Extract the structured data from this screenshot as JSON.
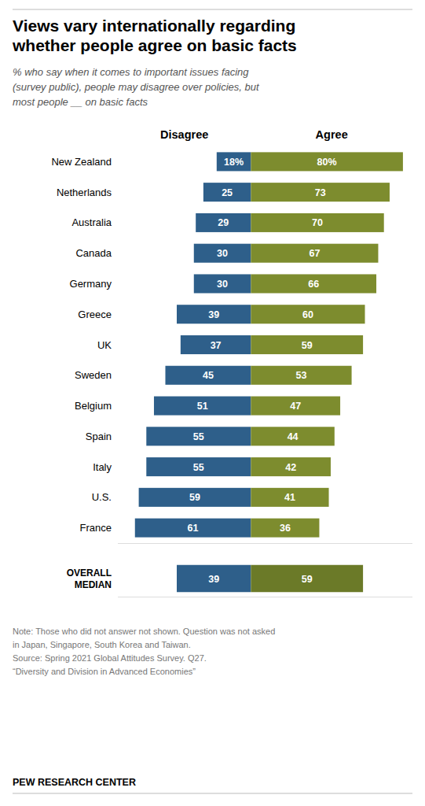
{
  "chart_data": [
    {
      "type": "bar",
      "orientation": "horizontal",
      "title": "Views vary internationally regarding\nwhether people agree on basic facts",
      "subtitle": "% who say when it comes to important issues facing\n(survey public), people may disagree over policies, but\nmost people __ on basic facts",
      "note": "Note: Those who did not answer not shown. Question was not asked\nin Japan, Singapore, South Korea and Taiwan.\nSource: Spring 2021 Global Attitudes Survey. Q27.\n“Diversity and Division in Advanced Economies”",
      "source": "PEW RESEARCH CENTER",
      "categories": [
        "New Zealand",
        "Netherlands",
        "Australia",
        "Canada",
        "Germany",
        "Greece",
        "UK",
        "Sweden",
        "Belgium",
        "Spain",
        "Italy",
        "U.S.",
        "France"
      ],
      "series": [
        {
          "name": "Disagree",
          "color": "#2e5f8a",
          "values": [
            18,
            25,
            29,
            30,
            30,
            39,
            37,
            45,
            51,
            55,
            55,
            59,
            61
          ],
          "value_labels": [
            "18%",
            "25",
            "29",
            "30",
            "30",
            "39",
            "37",
            "45",
            "51",
            "55",
            "55",
            "59",
            "61"
          ]
        },
        {
          "name": "Agree",
          "color": "#7d8c2e",
          "values": [
            80,
            73,
            70,
            67,
            66,
            60,
            59,
            53,
            47,
            44,
            42,
            41,
            36
          ],
          "value_labels": [
            "80%",
            "73",
            "70",
            "67",
            "66",
            "60",
            "59",
            "53",
            "47",
            "44",
            "42",
            "41",
            "36"
          ]
        }
      ],
      "xlim": [
        -70,
        85
      ],
      "data_labels": true,
      "tick_labels": "y",
      "grid": false
    },
    {
      "type": "bar",
      "orientation": "horizontal",
      "categories": [
        "OVERALL\nMEDIAN"
      ],
      "series": [
        {
          "color": "#2e5f8a",
          "values": [
            39
          ]
        },
        {
          "color": "#6b7a28",
          "values": [
            59
          ]
        }
      ],
      "xlim": [
        -70,
        85
      ],
      "data_labels": true,
      "tick_labels": "y",
      "grid": false
    }
  ]
}
